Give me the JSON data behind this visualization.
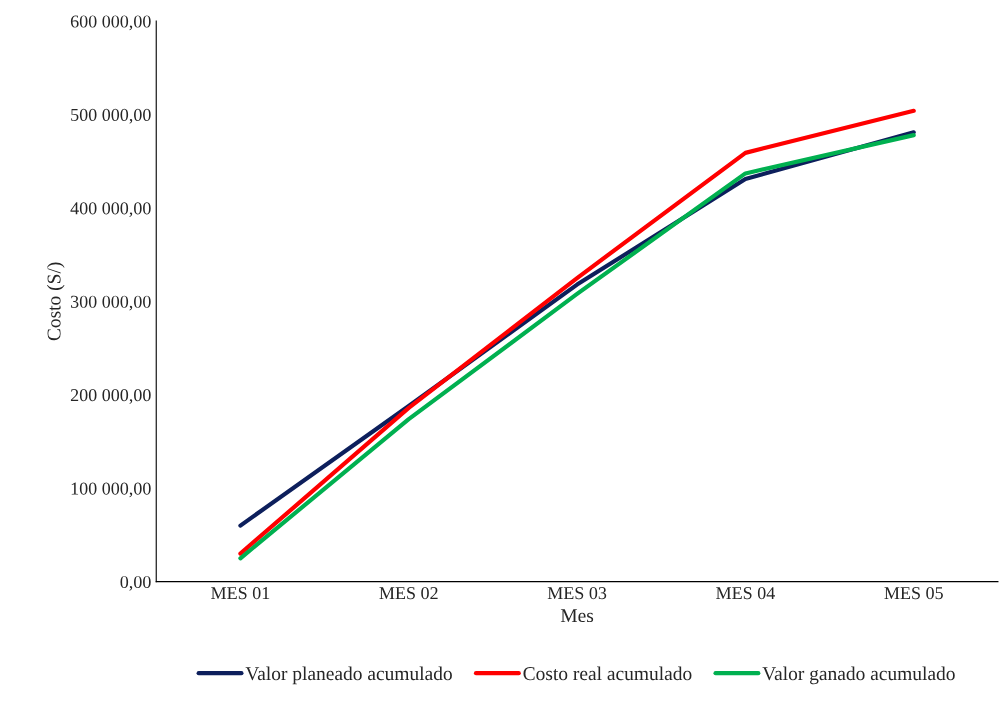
{
  "chart_data": {
    "type": "line",
    "xlabel": "Mes",
    "ylabel": "Costo (S/)",
    "categories": [
      "MES 01",
      "MES 02",
      "MES 03",
      "MES 04",
      "MES 05"
    ],
    "series": [
      {
        "name": "Valor planeado acumulado",
        "color": "#0d1f5c",
        "values": [
          60000,
          188000,
          318000,
          431000,
          481000
        ]
      },
      {
        "name": "Costo real acumulado",
        "color": "#ff0000",
        "values": [
          30000,
          186000,
          325000,
          459000,
          504000
        ]
      },
      {
        "name": "Valor ganado acumulado",
        "color": "#00b050",
        "values": [
          25000,
          174000,
          308000,
          437000,
          478000
        ]
      }
    ],
    "ylim": [
      0,
      600000
    ],
    "yticks": [
      {
        "value": 0,
        "label": "0,00"
      },
      {
        "value": 100000,
        "label": "100 000,00"
      },
      {
        "value": 200000,
        "label": "200 000,00"
      },
      {
        "value": 300000,
        "label": "300 000,00"
      },
      {
        "value": 400000,
        "label": "400 000,00"
      },
      {
        "value": 500000,
        "label": "500 000,00"
      },
      {
        "value": 600000,
        "label": "600 000,00"
      }
    ],
    "grid": false,
    "legend": "bottom",
    "marker": "none",
    "line_style": "solid"
  }
}
